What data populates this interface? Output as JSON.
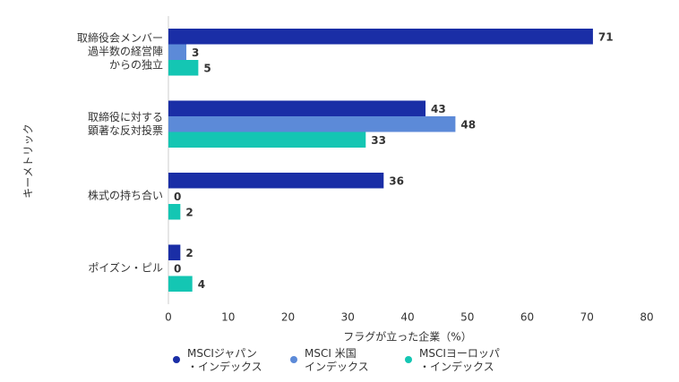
{
  "chart_data": {
    "type": "hbar",
    "categories": [
      "取締役会メンバー\n過半数の経営陣\nからの独立",
      "取締役に対する\n顕著な反対投票",
      "株式の持ち合い",
      "ポイズン・ピル"
    ],
    "series": [
      {
        "name": "MSCIジャパン\n・インデックス",
        "color": "#1a2ea6",
        "values": [
          71,
          43,
          36,
          2
        ]
      },
      {
        "name": "MSCI 米国\nインデックス",
        "color": "#5c8ad8",
        "values": [
          3,
          48,
          0,
          0
        ]
      },
      {
        "name": "MSCIヨーロッパ\n・インデックス",
        "color": "#14c6b3",
        "values": [
          5,
          33,
          2,
          4
        ]
      }
    ],
    "xlim": [
      0,
      80
    ],
    "xticks": [
      0,
      10,
      20,
      30,
      40,
      50,
      60,
      70,
      80
    ],
    "x_label": "フラグが立った企業（%）",
    "y_label": "キーメトリック",
    "grid": false
  }
}
